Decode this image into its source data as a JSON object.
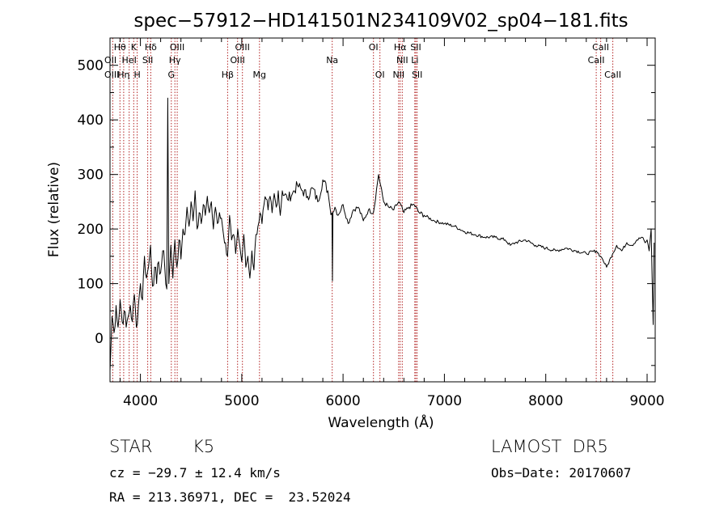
{
  "chart_data": {
    "type": "line",
    "title": "spec−57912−HD141501N234109V02_sp04−181.fits",
    "xlabel": "Wavelength (Å)",
    "ylabel": "Flux (relative)",
    "xlim": [
      3700,
      9080
    ],
    "ylim": [
      -80,
      550
    ],
    "xticks": [
      4000,
      5000,
      6000,
      7000,
      8000,
      9000
    ],
    "yticks": [
      0,
      100,
      200,
      300,
      400,
      500
    ],
    "grid": false,
    "line_color": "#000000",
    "marker_color": "#b22222",
    "spectrum": {
      "x": [
        3700,
        3720,
        3740,
        3760,
        3780,
        3800,
        3820,
        3840,
        3860,
        3880,
        3900,
        3920,
        3940,
        3960,
        3980,
        4000,
        4020,
        4040,
        4060,
        4080,
        4100,
        4120,
        4140,
        4160,
        4180,
        4200,
        4220,
        4240,
        4260,
        4270,
        4280,
        4300,
        4320,
        4340,
        4360,
        4380,
        4400,
        4420,
        4440,
        4460,
        4480,
        4500,
        4520,
        4540,
        4560,
        4580,
        4600,
        4620,
        4640,
        4660,
        4680,
        4700,
        4720,
        4740,
        4760,
        4780,
        4800,
        4820,
        4840,
        4860,
        4880,
        4900,
        4920,
        4940,
        4960,
        4980,
        5000,
        5020,
        5040,
        5060,
        5080,
        5100,
        5120,
        5140,
        5160,
        5180,
        5200,
        5220,
        5240,
        5260,
        5280,
        5300,
        5320,
        5340,
        5360,
        5380,
        5400,
        5450,
        5500,
        5550,
        5600,
        5650,
        5700,
        5750,
        5800,
        5850,
        5870,
        5890,
        5895,
        5900,
        5920,
        5950,
        6000,
        6050,
        6100,
        6150,
        6200,
        6250,
        6300,
        6350,
        6400,
        6450,
        6500,
        6550,
        6600,
        6650,
        6700,
        6750,
        6800,
        6900,
        7000,
        7100,
        7200,
        7300,
        7400,
        7500,
        7600,
        7650,
        7700,
        7800,
        7900,
        8000,
        8100,
        8200,
        8300,
        8400,
        8500,
        8540,
        8560,
        8600,
        8660,
        8700,
        8750,
        8800,
        8850,
        8900,
        8950,
        8980,
        9000,
        9020,
        9040,
        9060,
        9070
      ],
      "y": [
        -60,
        40,
        10,
        60,
        20,
        70,
        30,
        50,
        20,
        40,
        60,
        30,
        80,
        20,
        60,
        100,
        70,
        150,
        110,
        130,
        170,
        95,
        130,
        100,
        140,
        120,
        160,
        130,
        90,
        440,
        100,
        170,
        110,
        180,
        130,
        180,
        145,
        200,
        190,
        240,
        205,
        250,
        215,
        270,
        200,
        230,
        210,
        245,
        225,
        260,
        230,
        250,
        200,
        240,
        210,
        230,
        220,
        190,
        175,
        150,
        225,
        180,
        190,
        155,
        200,
        170,
        140,
        190,
        130,
        150,
        110,
        160,
        125,
        190,
        205,
        230,
        210,
        245,
        255,
        235,
        260,
        230,
        265,
        240,
        270,
        225,
        270,
        255,
        265,
        280,
        270,
        260,
        275,
        250,
        290,
        270,
        240,
        230,
        105,
        230,
        240,
        225,
        245,
        210,
        235,
        240,
        215,
        235,
        230,
        300,
        250,
        240,
        235,
        250,
        230,
        240,
        245,
        230,
        225,
        215,
        210,
        205,
        195,
        190,
        185,
        185,
        180,
        170,
        175,
        180,
        170,
        165,
        160,
        165,
        160,
        155,
        160,
        150,
        145,
        130,
        155,
        170,
        160,
        175,
        170,
        180,
        185,
        175,
        180,
        160,
        200,
        25,
        175
      ]
    },
    "line_labels": [
      {
        "text": "Hθ",
        "x": 3798,
        "row": 1
      },
      {
        "text": "K",
        "x": 3934,
        "row": 1
      },
      {
        "text": "Hδ",
        "x": 4102,
        "row": 1
      },
      {
        "text": "OIII",
        "x": 4363,
        "row": 1
      },
      {
        "text": "OIII",
        "x": 5007,
        "row": 1
      },
      {
        "text": "OI",
        "x": 6300,
        "row": 1
      },
      {
        "text": "Hα",
        "x": 6563,
        "row": 1
      },
      {
        "text": "SII",
        "x": 6717,
        "row": 1
      },
      {
        "text": "CaII",
        "x": 8542,
        "row": 1
      },
      {
        "text": "OII",
        "x": 3727,
        "row": 2
      },
      {
        "text": "HeI",
        "x": 3889,
        "row": 2
      },
      {
        "text": "SII",
        "x": 4072,
        "row": 2
      },
      {
        "text": "Hγ",
        "x": 4340,
        "row": 2
      },
      {
        "text": "OIII",
        "x": 4959,
        "row": 2
      },
      {
        "text": "Na",
        "x": 5893,
        "row": 2
      },
      {
        "text": "NII",
        "x": 6584,
        "row": 2
      },
      {
        "text": "Li",
        "x": 6708,
        "row": 2
      },
      {
        "text": "CaII",
        "x": 8498,
        "row": 2
      },
      {
        "text": "OIII",
        "x": 3727,
        "row": 3
      },
      {
        "text": "Hη",
        "x": 3835,
        "row": 3
      },
      {
        "text": "H",
        "x": 3968,
        "row": 3
      },
      {
        "text": "G",
        "x": 4305,
        "row": 3
      },
      {
        "text": "Hβ",
        "x": 4861,
        "row": 3
      },
      {
        "text": "Mg",
        "x": 5175,
        "row": 3
      },
      {
        "text": "OI",
        "x": 6364,
        "row": 3
      },
      {
        "text": "NII",
        "x": 6548,
        "row": 3
      },
      {
        "text": "SII",
        "x": 6731,
        "row": 3
      },
      {
        "text": "CaII",
        "x": 8662,
        "row": 3
      }
    ],
    "line_markers": [
      3727,
      3798,
      3835,
      3889,
      3934,
      3968,
      4072,
      4102,
      4305,
      4340,
      4363,
      4861,
      4959,
      5007,
      5175,
      5893,
      6300,
      6364,
      6548,
      6563,
      6584,
      6708,
      6717,
      6731,
      8498,
      8542,
      8662
    ]
  },
  "info": {
    "object_class": "STAR",
    "subclass": "K5",
    "survey": "LAMOST  DR5",
    "cz": "cz = −29.7 ± 12.4 km/s",
    "obs_date": "Obs−Date: 20170607",
    "coords": "RA = 213.36971, DEC =  23.52024"
  }
}
